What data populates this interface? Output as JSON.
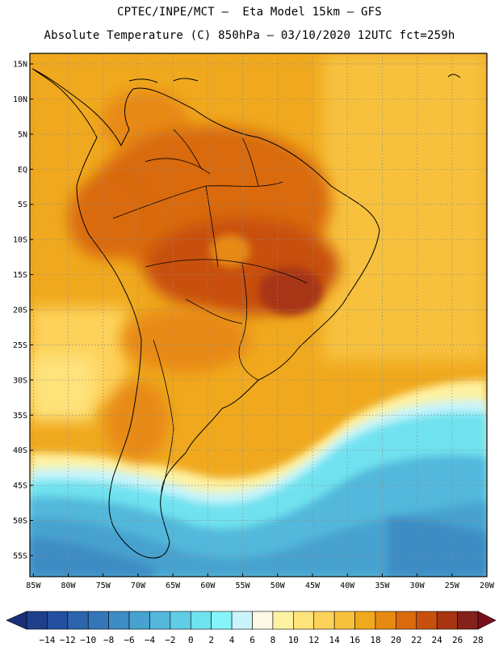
{
  "header": {
    "line1": "CPTEC/INPE/MCT –  Eta Model 15km – GFS",
    "line2": "Absolute Temperature (C) 850hPa – 03/10/2020 12UTC fct=259h"
  },
  "map": {
    "lat_labels": [
      "15N",
      "10N",
      "5N",
      "EQ",
      "5S",
      "10S",
      "15S",
      "20S",
      "25S",
      "30S",
      "35S",
      "40S",
      "45S",
      "50S",
      "55S"
    ],
    "lat_values": [
      15,
      10,
      5,
      0,
      -5,
      -10,
      -15,
      -20,
      -25,
      -30,
      -35,
      -40,
      -45,
      -50,
      -55
    ],
    "lon_labels": [
      "85W",
      "80W",
      "75W",
      "70W",
      "65W",
      "60W",
      "55W",
      "50W",
      "45W",
      "40W",
      "35W",
      "30W",
      "25W",
      "20W"
    ],
    "lon_values": [
      -85,
      -80,
      -75,
      -70,
      -65,
      -60,
      -55,
      -50,
      -45,
      -40,
      -35,
      -30,
      -25,
      -20
    ],
    "extent": {
      "lon_min": -85.5,
      "lon_max": -20,
      "lat_min": -58,
      "lat_max": 16.5
    }
  },
  "colorbar": {
    "labels": [
      "-14",
      "-12",
      "-10",
      "-8",
      "-6",
      "-4",
      "-2",
      "0",
      "2",
      "4",
      "6",
      "8",
      "10",
      "12",
      "14",
      "16",
      "18",
      "20",
      "22",
      "24",
      "26",
      "28"
    ],
    "colors": [
      "#1f3f8c",
      "#24509f",
      "#2c64ad",
      "#3576b8",
      "#3e8cc4",
      "#47a2cf",
      "#53b8db",
      "#5fcde5",
      "#6fe2ef",
      "#86f5fb",
      "#c9f4fb",
      "#fef8e6",
      "#fef2a2",
      "#fee27a",
      "#fdd25a",
      "#f7c13e",
      "#f0a91e",
      "#e88a12",
      "#d96a0e",
      "#c8500e",
      "#a73512",
      "#83211a"
    ],
    "under_color": "#1a2f78",
    "over_color": "#7a0f1c"
  }
}
